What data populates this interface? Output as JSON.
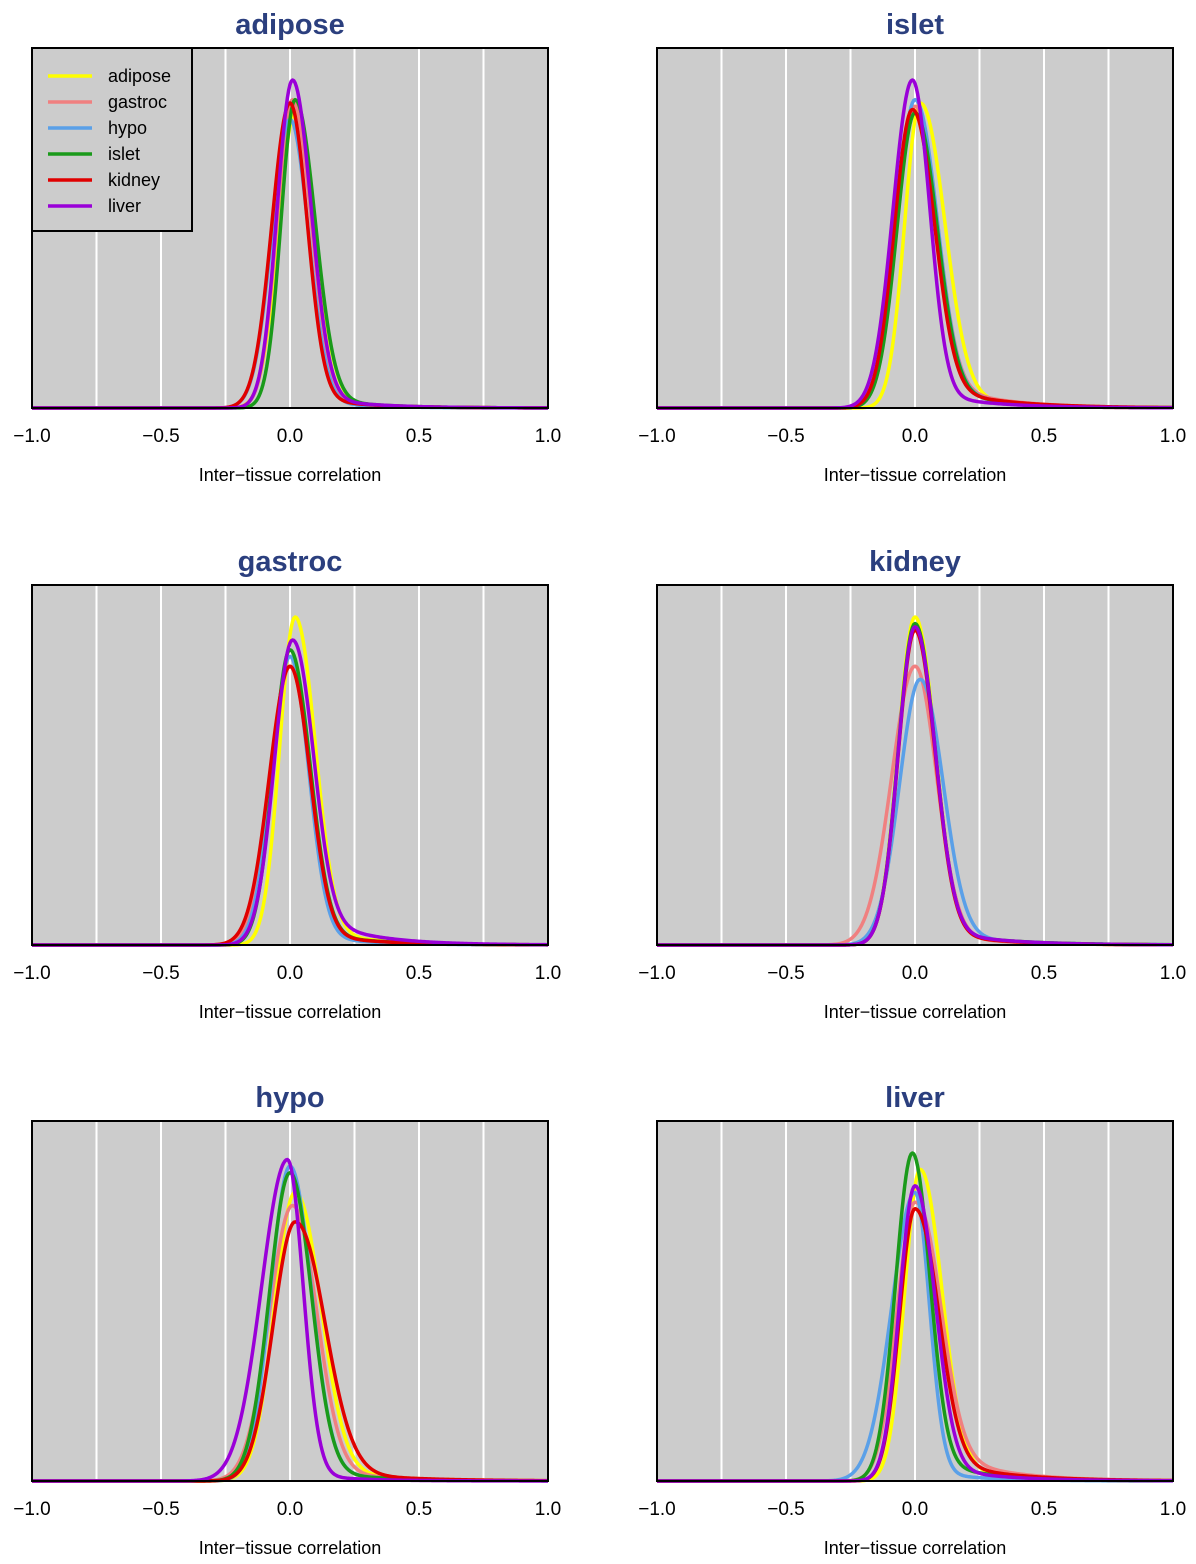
{
  "figure": {
    "legend_title": "",
    "legend_entries": [
      "adipose",
      "gastroc",
      "hypo",
      "islet",
      "kidney",
      "liver"
    ]
  },
  "colors": {
    "adipose": "#FFFF00",
    "gastroc": "#F08080",
    "hypo": "#5AA0E8",
    "islet": "#1A9A1A",
    "kidney": "#E00000",
    "liver": "#9A00D8",
    "panel_bg": "#CCCCCC",
    "title": "#2B3F7E"
  },
  "chart_data": [
    {
      "type": "line",
      "title": "adipose",
      "xlabel": "Inter−tissue correlation",
      "ylabel": "",
      "xlim": [
        -1,
        1
      ],
      "xticks": [
        -1.0,
        -0.5,
        0.0,
        0.5,
        1.0
      ],
      "xtick_labels": [
        "−1.0",
        "−0.5",
        "0.0",
        "0.5",
        "1.0"
      ],
      "grid": true,
      "legend": "top-left",
      "series": [
        {
          "name": "adipose",
          "mode": 0.02,
          "peak": 0.9,
          "sl": 0.065,
          "sr": 0.075,
          "tail": 0.05,
          "tailw": 0.2
        },
        {
          "name": "gastroc",
          "mode": 0.01,
          "peak": 0.94,
          "sl": 0.06,
          "sr": 0.07,
          "tail": 0.045,
          "tailw": 0.2
        },
        {
          "name": "hypo",
          "mode": 0.0,
          "peak": 0.88,
          "sl": 0.07,
          "sr": 0.07,
          "tail": 0.04,
          "tailw": 0.18
        },
        {
          "name": "islet",
          "mode": 0.02,
          "peak": 0.94,
          "sl": 0.055,
          "sr": 0.075,
          "tail": 0.05,
          "tailw": 0.2
        },
        {
          "name": "kidney",
          "mode": 0.0,
          "peak": 0.93,
          "sl": 0.07,
          "sr": 0.065,
          "tail": 0.05,
          "tailw": 0.2
        },
        {
          "name": "liver",
          "mode": 0.01,
          "peak": 1.0,
          "sl": 0.06,
          "sr": 0.07,
          "tail": 0.05,
          "tailw": 0.2
        }
      ]
    },
    {
      "type": "line",
      "title": "islet",
      "xlabel": "Inter−tissue correlation",
      "ylabel": "",
      "xlim": [
        -1,
        1
      ],
      "xticks": [
        -1.0,
        -0.5,
        0.0,
        0.5,
        1.0
      ],
      "xtick_labels": [
        "−1.0",
        "−0.5",
        "0.0",
        "0.5",
        "1.0"
      ],
      "grid": true,
      "series": [
        {
          "name": "adipose",
          "mode": 0.02,
          "peak": 0.93,
          "sl": 0.06,
          "sr": 0.09,
          "tail": 0.08,
          "tailw": 0.2
        },
        {
          "name": "gastroc",
          "mode": 0.0,
          "peak": 0.92,
          "sl": 0.07,
          "sr": 0.08,
          "tail": 0.12,
          "tailw": 0.22
        },
        {
          "name": "hypo",
          "mode": 0.0,
          "peak": 0.94,
          "sl": 0.07,
          "sr": 0.08,
          "tail": 0.1,
          "tailw": 0.22
        },
        {
          "name": "islet",
          "mode": 0.0,
          "peak": 0.9,
          "sl": 0.07,
          "sr": 0.08,
          "tail": 0.1,
          "tailw": 0.22
        },
        {
          "name": "kidney",
          "mode": -0.01,
          "peak": 0.91,
          "sl": 0.07,
          "sr": 0.08,
          "tail": 0.1,
          "tailw": 0.24
        },
        {
          "name": "liver",
          "mode": -0.01,
          "peak": 1.0,
          "sl": 0.075,
          "sr": 0.065,
          "tail": 0.06,
          "tailw": 0.22
        }
      ]
    },
    {
      "type": "line",
      "title": "gastroc",
      "xlabel": "Inter−tissue correlation",
      "ylabel": "",
      "xlim": [
        -1,
        1
      ],
      "xticks": [
        -1.0,
        -0.5,
        0.0,
        0.5,
        1.0
      ],
      "xtick_labels": [
        "−1.0",
        "−0.5",
        "0.0",
        "0.5",
        "1.0"
      ],
      "grid": true,
      "series": [
        {
          "name": "adipose",
          "mode": 0.02,
          "peak": 1.0,
          "sl": 0.06,
          "sr": 0.075,
          "tail": 0.06,
          "tailw": 0.22
        },
        {
          "name": "gastroc",
          "mode": 0.0,
          "peak": 0.85,
          "sl": 0.075,
          "sr": 0.075,
          "tail": 0.06,
          "tailw": 0.22
        },
        {
          "name": "hypo",
          "mode": 0.0,
          "peak": 0.88,
          "sl": 0.07,
          "sr": 0.07,
          "tail": 0.05,
          "tailw": 0.2
        },
        {
          "name": "islet",
          "mode": 0.0,
          "peak": 0.9,
          "sl": 0.065,
          "sr": 0.075,
          "tail": 0.06,
          "tailw": 0.22
        },
        {
          "name": "kidney",
          "mode": 0.0,
          "peak": 0.85,
          "sl": 0.08,
          "sr": 0.075,
          "tail": 0.06,
          "tailw": 0.22
        },
        {
          "name": "liver",
          "mode": 0.01,
          "peak": 0.93,
          "sl": 0.07,
          "sr": 0.075,
          "tail": 0.14,
          "tailw": 0.2
        }
      ]
    },
    {
      "type": "line",
      "title": "kidney",
      "xlabel": "Inter−tissue correlation",
      "ylabel": "",
      "xlim": [
        -1,
        1
      ],
      "xticks": [
        -1.0,
        -0.5,
        0.0,
        0.5,
        1.0
      ],
      "xtick_labels": [
        "−1.0",
        "−0.5",
        "0.0",
        "0.5",
        "1.0"
      ],
      "grid": true,
      "series": [
        {
          "name": "adipose",
          "mode": 0.0,
          "peak": 1.0,
          "sl": 0.065,
          "sr": 0.075,
          "tail": 0.06,
          "tailw": 0.22
        },
        {
          "name": "gastroc",
          "mode": 0.0,
          "peak": 0.85,
          "sl": 0.09,
          "sr": 0.08,
          "tail": 0.06,
          "tailw": 0.22
        },
        {
          "name": "hypo",
          "mode": 0.02,
          "peak": 0.81,
          "sl": 0.08,
          "sr": 0.085,
          "tail": 0.06,
          "tailw": 0.24
        },
        {
          "name": "islet",
          "mode": 0.0,
          "peak": 0.98,
          "sl": 0.065,
          "sr": 0.075,
          "tail": 0.06,
          "tailw": 0.24
        },
        {
          "name": "kidney",
          "mode": 0.0,
          "peak": 0.96,
          "sl": 0.065,
          "sr": 0.075,
          "tail": 0.06,
          "tailw": 0.22
        },
        {
          "name": "liver",
          "mode": 0.0,
          "peak": 0.97,
          "sl": 0.065,
          "sr": 0.075,
          "tail": 0.07,
          "tailw": 0.22
        }
      ]
    },
    {
      "type": "line",
      "title": "hypo",
      "xlabel": "Inter−tissue correlation",
      "ylabel": "",
      "xlim": [
        -1,
        1
      ],
      "xticks": [
        -1.0,
        -0.5,
        0.0,
        0.5,
        1.0
      ],
      "xtick_labels": [
        "−1.0",
        "−0.5",
        "0.0",
        "0.5",
        "1.0"
      ],
      "grid": true,
      "series": [
        {
          "name": "adipose",
          "mode": 0.02,
          "peak": 0.88,
          "sl": 0.08,
          "sr": 0.095,
          "tail": 0.06,
          "tailw": 0.24
        },
        {
          "name": "gastroc",
          "mode": 0.01,
          "peak": 0.84,
          "sl": 0.09,
          "sr": 0.09,
          "tail": 0.06,
          "tailw": 0.24
        },
        {
          "name": "hypo",
          "mode": 0.0,
          "peak": 0.96,
          "sl": 0.075,
          "sr": 0.08,
          "tail": 0.05,
          "tailw": 0.22
        },
        {
          "name": "islet",
          "mode": 0.0,
          "peak": 0.94,
          "sl": 0.08,
          "sr": 0.08,
          "tail": 0.05,
          "tailw": 0.22
        },
        {
          "name": "kidney",
          "mode": 0.02,
          "peak": 0.79,
          "sl": 0.085,
          "sr": 0.11,
          "tail": 0.06,
          "tailw": 0.26
        },
        {
          "name": "liver",
          "mode": -0.01,
          "peak": 0.98,
          "sl": 0.1,
          "sr": 0.06,
          "tail": 0.03,
          "tailw": 0.18
        }
      ]
    },
    {
      "type": "line",
      "title": "liver",
      "xlabel": "Inter−tissue correlation",
      "ylabel": "",
      "xlim": [
        -1,
        1
      ],
      "xticks": [
        -1.0,
        -0.5,
        0.0,
        0.5,
        1.0
      ],
      "xtick_labels": [
        "−1.0",
        "−0.5",
        "0.0",
        "0.5",
        "1.0"
      ],
      "grid": true,
      "series": [
        {
          "name": "adipose",
          "mode": 0.02,
          "peak": 0.95,
          "sl": 0.06,
          "sr": 0.08,
          "tail": 0.08,
          "tailw": 0.22
        },
        {
          "name": "gastroc",
          "mode": 0.0,
          "peak": 0.85,
          "sl": 0.07,
          "sr": 0.09,
          "tail": 0.16,
          "tailw": 0.22
        },
        {
          "name": "hypo",
          "mode": 0.0,
          "peak": 0.88,
          "sl": 0.09,
          "sr": 0.055,
          "tail": 0.04,
          "tailw": 0.2
        },
        {
          "name": "islet",
          "mode": -0.01,
          "peak": 1.0,
          "sl": 0.065,
          "sr": 0.065,
          "tail": 0.09,
          "tailw": 0.2
        },
        {
          "name": "kidney",
          "mode": 0.0,
          "peak": 0.83,
          "sl": 0.06,
          "sr": 0.085,
          "tail": 0.11,
          "tailw": 0.24
        },
        {
          "name": "liver",
          "mode": 0.0,
          "peak": 0.9,
          "sl": 0.06,
          "sr": 0.075,
          "tail": 0.07,
          "tailw": 0.22
        }
      ]
    }
  ]
}
